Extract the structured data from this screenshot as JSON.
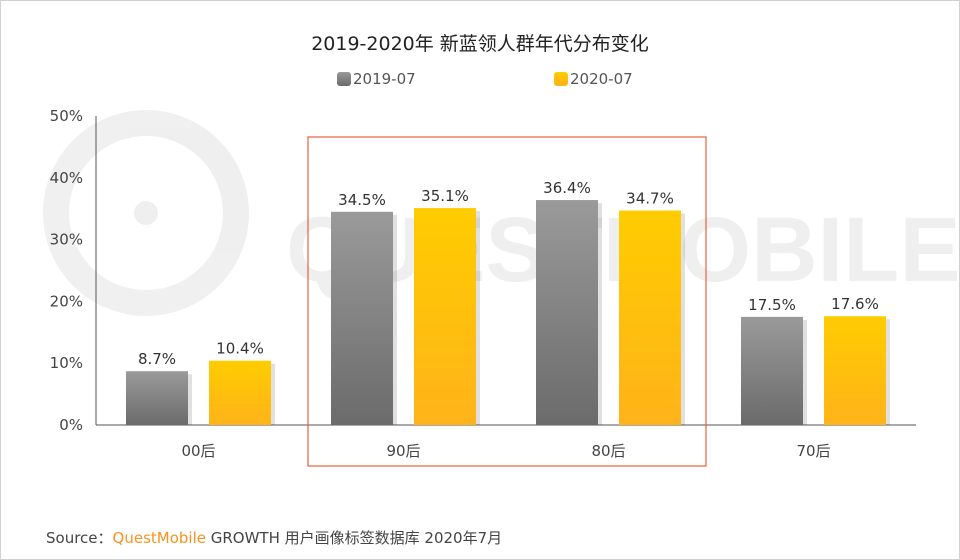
{
  "chart_data": {
    "type": "bar",
    "title": "2019-2020年 新蓝领人群年代分布变化",
    "categories": [
      "00后",
      "90后",
      "80后",
      "70后"
    ],
    "series": [
      {
        "name": "2019-07",
        "values": [
          8.7,
          34.5,
          36.4,
          17.5
        ],
        "labels": [
          "8.7%",
          "34.5%",
          "36.4%",
          "17.5%"
        ],
        "color": "#7a7a7a"
      },
      {
        "name": "2020-07",
        "values": [
          10.4,
          35.1,
          34.7,
          17.6
        ],
        "labels": [
          "10.4%",
          "35.1%",
          "34.7%",
          "17.6%"
        ],
        "color": "#ffc000"
      }
    ],
    "ylim": [
      0,
      50
    ],
    "yticks": [
      "0%",
      "10%",
      "20%",
      "30%",
      "40%",
      "50%"
    ],
    "legend": "top",
    "highlight_categories": [
      "90后",
      "80后"
    ],
    "highlight_color": "#e8603c"
  },
  "watermark": "QUESTMOBILE",
  "source": {
    "prefix": "Source：",
    "brand": "QuestMobile",
    "rest": " GROWTH 用户画像标签数据库 2020年7月"
  }
}
